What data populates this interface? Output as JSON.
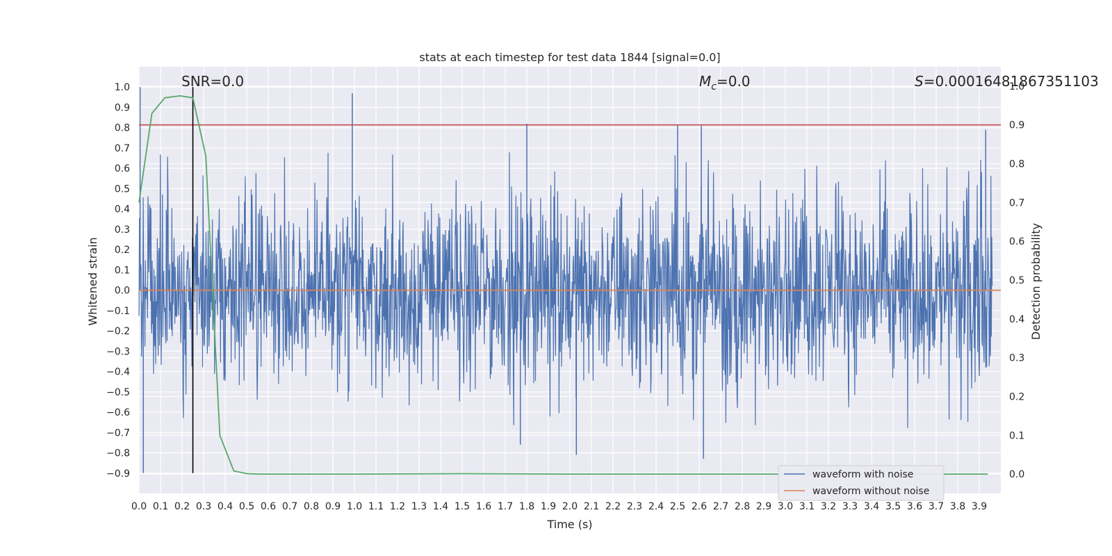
{
  "chart_data": {
    "type": "line",
    "title": "stats at each timestep for test data 1844 [signal=0.0]",
    "xlabel": "Time (s)",
    "ylabel": "Whitened strain",
    "ylabel_right": "Detection probability",
    "xlim": [
      0.0,
      4.0
    ],
    "ylim": [
      -1.0,
      1.1
    ],
    "ylim_right": [
      -0.05,
      1.05
    ],
    "x_ticks": [
      "0.0",
      "0.1",
      "0.2",
      "0.3",
      "0.4",
      "0.5",
      "0.6",
      "0.7",
      "0.8",
      "0.9",
      "1.0",
      "1.1",
      "1.2",
      "1.3",
      "1.4",
      "1.5",
      "1.6",
      "1.7",
      "1.8",
      "1.9",
      "2.0",
      "2.1",
      "2.2",
      "2.3",
      "2.4",
      "2.5",
      "2.6",
      "2.7",
      "2.8",
      "2.9",
      "3.0",
      "3.1",
      "3.2",
      "3.3",
      "3.4",
      "3.5",
      "3.6",
      "3.7",
      "3.8",
      "3.9"
    ],
    "y_ticks": [
      "1.0",
      "0.9",
      "0.8",
      "0.7",
      "0.6",
      "0.5",
      "0.4",
      "0.3",
      "0.2",
      "0.1",
      "0.0",
      "−0.1",
      "−0.2",
      "−0.3",
      "−0.4",
      "−0.5",
      "−0.6",
      "−0.7",
      "−0.8",
      "−0.9"
    ],
    "y_right_ticks": [
      "1.0",
      "0.9",
      "0.8",
      "0.7",
      "0.6",
      "0.5",
      "0.4",
      "0.3",
      "0.2",
      "0.1",
      "0.0"
    ],
    "annotations": {
      "snr": "SNR=0.0",
      "mc_symbol": "M",
      "mc_sub": "c",
      "mc_value": "=0.0",
      "s_symbol": "S",
      "s_value": "=0.00016481867351103"
    },
    "vertical_line_x": 0.25,
    "threshold_line_y_right": 0.9,
    "grid": true,
    "legend_location": "lower right",
    "series": [
      {
        "name": "waveform with noise",
        "color": "#4c72b0",
        "axis": "left",
        "envelope": "dense noise, spikes roughly between -0.83 and 1.0",
        "spikes_positive": [
          [
            0.005,
            1.0
          ],
          [
            0.99,
            0.97
          ],
          [
            1.8,
            0.82
          ],
          [
            2.5,
            0.81
          ],
          [
            2.61,
            0.81
          ],
          [
            3.93,
            0.79
          ]
        ],
        "spikes_negative": [
          [
            0.02,
            -0.9
          ],
          [
            2.03,
            -0.81
          ],
          [
            2.62,
            -0.83
          ],
          [
            1.77,
            -0.76
          ]
        ]
      },
      {
        "name": "waveform without noise",
        "color": "#dd8452",
        "axis": "left",
        "x": [
          0.0,
          4.0
        ],
        "y": [
          0.0,
          0.0
        ]
      },
      {
        "name": "",
        "color": "#55a868",
        "axis": "right",
        "x": [
          0.0,
          0.06,
          0.12,
          0.19,
          0.25,
          0.31,
          0.375,
          0.44,
          0.5,
          0.56,
          1.0,
          1.5,
          2.0,
          2.5,
          3.0,
          3.5,
          3.94
        ],
        "y": [
          0.7,
          0.93,
          0.97,
          0.975,
          0.97,
          0.82,
          0.1,
          0.008,
          0.001,
          0.0,
          0.0,
          0.001,
          0.0,
          0.0,
          0.0,
          0.0,
          0.0
        ]
      }
    ],
    "colors": {
      "background": "#eaeaf2",
      "grid": "#ffffff",
      "threshold": "#c44e52",
      "vline": "#000000"
    }
  }
}
